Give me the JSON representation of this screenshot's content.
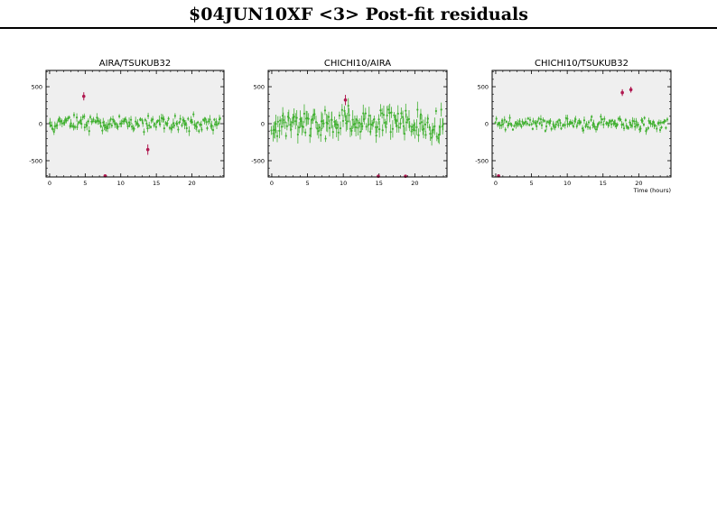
{
  "header": {
    "title": "$04JUN10XF <3> Post-fit residuals"
  },
  "colors": {
    "good": "#40b030",
    "outlier": "#b01850",
    "panel_bg": "#efefef"
  },
  "chart_data": [
    {
      "type": "scatter",
      "title": "AIRA/TSUKUB32",
      "xlabel": "",
      "ylabel": "",
      "xlim": [
        -0.5,
        24.5
      ],
      "ylim": [
        -720,
        720
      ],
      "xticks": [
        0,
        5,
        10,
        15,
        20
      ],
      "yticks": [
        500,
        0,
        -500
      ],
      "seed": 3,
      "good_noise": 55,
      "outliers": [
        {
          "x": 4.8,
          "y": 370,
          "err": 55
        },
        {
          "x": 7.8,
          "y": -705,
          "err": 20
        },
        {
          "x": 13.8,
          "y": -350,
          "err": 70
        }
      ]
    },
    {
      "type": "scatter",
      "title": "CHICHI10/AIRA",
      "xlabel": "",
      "ylabel": "",
      "xlim": [
        -0.5,
        24.5
      ],
      "ylim": [
        -720,
        720
      ],
      "xticks": [
        0,
        5,
        10,
        15,
        20
      ],
      "yticks": [
        500,
        0,
        -500
      ],
      "seed": 7,
      "good_noise": 110,
      "outliers": [
        {
          "x": 10.3,
          "y": 320,
          "err": 70
        },
        {
          "x": 14.9,
          "y": -710,
          "err": 20
        },
        {
          "x": 18.7,
          "y": -710,
          "err": 20
        }
      ]
    },
    {
      "type": "scatter",
      "title": "CHICHI10/TSUKUB32",
      "xlabel": "Time (hours)",
      "ylabel": "",
      "xlim": [
        -0.5,
        24.5
      ],
      "ylim": [
        -720,
        720
      ],
      "xticks": [
        0,
        5,
        10,
        15,
        20
      ],
      "yticks": [
        500,
        0,
        -500
      ],
      "seed": 11,
      "good_noise": 45,
      "outliers": [
        {
          "x": 0.4,
          "y": -705,
          "err": 20
        },
        {
          "x": 17.7,
          "y": 420,
          "err": 45
        },
        {
          "x": 18.9,
          "y": 460,
          "err": 40
        }
      ]
    }
  ]
}
